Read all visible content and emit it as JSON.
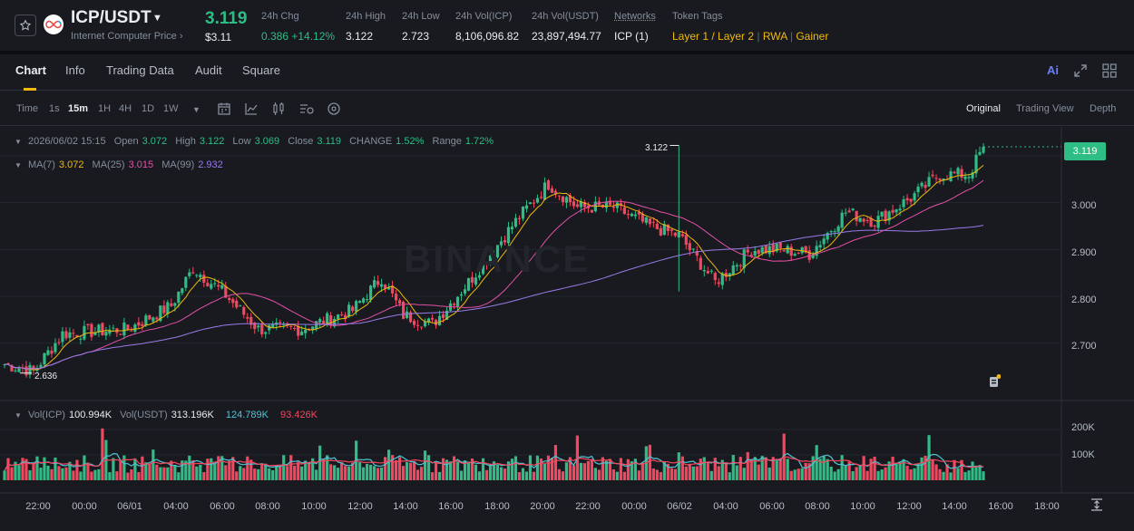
{
  "header": {
    "pair": "ICP/USDT",
    "subname": "Internet Computer Price ›",
    "last_price": "3.119",
    "last_price_usd": "$3.11",
    "stats": [
      {
        "label": "24h Chg",
        "value": "0.386 +14.12%",
        "tone": "green"
      },
      {
        "label": "24h High",
        "value": "3.122",
        "tone": "white"
      },
      {
        "label": "24h Low",
        "value": "2.723",
        "tone": "white"
      },
      {
        "label": "24h Vol(ICP)",
        "value": "8,106,096.82",
        "tone": "white"
      },
      {
        "label": "24h Vol(USDT)",
        "value": "23,897,494.77",
        "tone": "white"
      },
      {
        "label": "Networks",
        "value": "ICP (1)",
        "tone": "white"
      }
    ],
    "token_tags_label": "Token Tags",
    "token_tags": [
      "Layer 1 / Layer 2",
      "RWA",
      "Gainer"
    ]
  },
  "tabs": [
    "Chart",
    "Info",
    "Trading Data",
    "Audit",
    "Square"
  ],
  "toolbar": {
    "timeframes": [
      "Time",
      "1s",
      "15m",
      "1H",
      "4H",
      "1D",
      "1W"
    ],
    "active_timeframe": "15m",
    "views": [
      "Original",
      "Trading View",
      "Depth"
    ],
    "active_view": "Original",
    "ai_label": "Ai"
  },
  "candle_info": {
    "datetime": "2026/06/02 15:15",
    "open_label": "Open",
    "open": "3.072",
    "high_label": "High",
    "high": "3.122",
    "low_label": "Low",
    "low": "3.069",
    "close_label": "Close",
    "close": "3.119",
    "change_label": "CHANGE",
    "change": "1.52%",
    "range_label": "Range",
    "range": "1.72%"
  },
  "ma_info": {
    "ma7_label": "MA(7)",
    "ma7": "3.072",
    "ma25_label": "MA(25)",
    "ma25": "3.015",
    "ma99_label": "MA(99)",
    "ma99": "2.932"
  },
  "vol_info": {
    "vol_icp_label": "Vol(ICP)",
    "vol_icp": "100.994K",
    "vol_usdt_label": "Vol(USDT)",
    "vol_usdt": "313.196K",
    "ma_a": "124.789K",
    "ma_b": "93.426K"
  },
  "watermark": "BINANCE",
  "price_axis": [
    "3.000",
    "2.900",
    "2.800",
    "2.700"
  ],
  "current_price_tag": "3.119",
  "high_marker": "3.122",
  "low_marker": "2.636",
  "volume_axis": [
    "200K",
    "100K"
  ],
  "time_axis": [
    "22:00",
    "00:00",
    "06/01",
    "04:00",
    "06:00",
    "08:00",
    "10:00",
    "12:00",
    "14:00",
    "16:00",
    "18:00",
    "20:00",
    "22:00",
    "00:00",
    "06/02",
    "04:00",
    "06:00",
    "08:00",
    "10:00",
    "12:00",
    "14:00",
    "16:00",
    "18:00"
  ],
  "colors": {
    "up": "#2ebd85",
    "down": "#f6465d",
    "ma7": "#f0b90b",
    "ma25": "#e450a5",
    "ma99": "#9a7be8",
    "vol_ma_a": "#4fc4d6",
    "vol_ma_b": "#f6465d",
    "accent": "#f0b90b"
  },
  "chart_data": {
    "type": "candlestick",
    "price_anchors": [
      {
        "x_index": 0,
        "price": 2.655
      },
      {
        "x_index": 8,
        "price": 2.64
      },
      {
        "x_index": 16,
        "price": 2.72
      },
      {
        "x_index": 34,
        "price": 2.73
      },
      {
        "x_index": 46,
        "price": 2.78
      },
      {
        "x_index": 52,
        "price": 2.86
      },
      {
        "x_index": 60,
        "price": 2.81
      },
      {
        "x_index": 70,
        "price": 2.73
      },
      {
        "x_index": 82,
        "price": 2.73
      },
      {
        "x_index": 96,
        "price": 2.77
      },
      {
        "x_index": 104,
        "price": 2.84
      },
      {
        "x_index": 110,
        "price": 2.76
      },
      {
        "x_index": 118,
        "price": 2.74
      },
      {
        "x_index": 128,
        "price": 2.83
      },
      {
        "x_index": 142,
        "price": 2.97
      },
      {
        "x_index": 150,
        "price": 3.04
      },
      {
        "x_index": 158,
        "price": 2.99
      },
      {
        "x_index": 168,
        "price": 2.99
      },
      {
        "x_index": 178,
        "price": 2.95
      },
      {
        "x_index": 186,
        "price": 2.93
      },
      {
        "x_index": 196,
        "price": 2.83
      },
      {
        "x_index": 206,
        "price": 2.9
      },
      {
        "x_index": 214,
        "price": 2.9
      },
      {
        "x_index": 222,
        "price": 2.89
      },
      {
        "x_index": 232,
        "price": 2.98
      },
      {
        "x_index": 240,
        "price": 2.96
      },
      {
        "x_index": 250,
        "price": 3.01
      },
      {
        "x_index": 258,
        "price": 3.06
      },
      {
        "x_index": 266,
        "price": 3.06
      },
      {
        "x_index": 270,
        "price": 3.119
      }
    ],
    "candle_count": 271,
    "y_range": [
      2.62,
      3.15
    ],
    "volume_range": [
      0,
      250000
    ]
  }
}
